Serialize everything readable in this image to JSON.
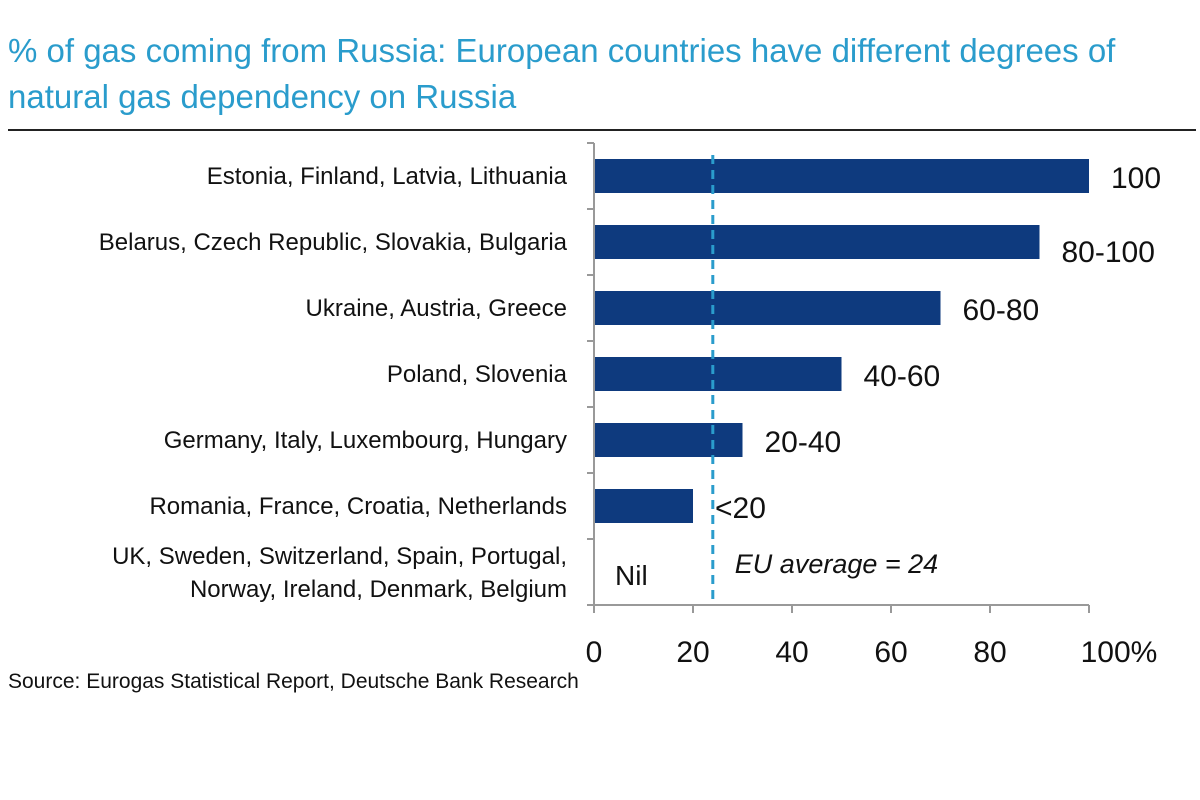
{
  "chart_data": {
    "type": "bar",
    "orientation": "horizontal",
    "title": "% of gas coming from Russia: European countries have different degrees of natural gas dependency on Russia",
    "categories": [
      [
        "Estonia, Finland, Latvia, Lithuania"
      ],
      [
        "Belarus, Czech Republic, Slovakia, Bulgaria"
      ],
      [
        "Ukraine, Austria, Greece"
      ],
      [
        "Poland, Slovenia"
      ],
      [
        "Germany, Italy, Luxembourg, Hungary"
      ],
      [
        "Romania, France, Croatia, Netherlands"
      ],
      [
        "UK, Sweden, Switzerland, Spain, Portugal,",
        "Norway, Ireland, Denmark, Belgium"
      ]
    ],
    "values": [
      100,
      90,
      70,
      50,
      30,
      20,
      0
    ],
    "data_labels": [
      "100",
      "80-100",
      "60-80",
      "40-60",
      "20-40",
      "<20",
      "Nil"
    ],
    "xlim": [
      0,
      100
    ],
    "x_ticks": [
      0,
      20,
      40,
      60,
      80,
      100
    ],
    "x_tick_labels": [
      "0",
      "20",
      "40",
      "60",
      "80",
      "100%"
    ],
    "reference_line": {
      "value": 24,
      "label": "EU average = 24",
      "style": "dashed",
      "color": "#2a9ccc"
    },
    "bar_color": "#0e3a7e",
    "grid": false,
    "source": "Source: Eurogas Statistical Report, Deutsche Bank Research"
  }
}
